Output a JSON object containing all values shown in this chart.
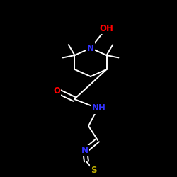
{
  "background": "#000000",
  "bond_color": "#ffffff",
  "atom_colors": {
    "O": "#ff0000",
    "N": "#3333ff",
    "S": "#bbaa00",
    "C": "#ffffff"
  },
  "figsize": [
    2.5,
    2.5
  ],
  "dpi": 100,
  "lw": 1.4,
  "fontsize": 8.5
}
